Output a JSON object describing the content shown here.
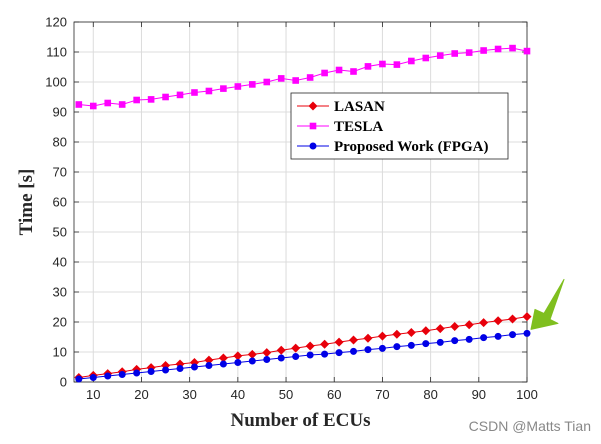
{
  "chart_data": {
    "type": "line",
    "title": "",
    "xlabel": "Number of ECUs",
    "ylabel": "Time [s]",
    "xlim": [
      6,
      100
    ],
    "ylim": [
      0,
      120
    ],
    "xticks": [
      10,
      20,
      30,
      40,
      50,
      60,
      70,
      80,
      90,
      100
    ],
    "yticks": [
      0,
      10,
      20,
      30,
      40,
      50,
      60,
      70,
      80,
      90,
      100,
      110,
      120
    ],
    "grid": true,
    "legend_position": "upper-middle-right",
    "x": [
      7,
      10,
      13,
      16,
      19,
      22,
      25,
      28,
      31,
      34,
      37,
      40,
      43,
      46,
      49,
      52,
      55,
      58,
      61,
      64,
      67,
      70,
      73,
      76,
      79,
      82,
      85,
      88,
      91,
      94,
      97,
      100
    ],
    "series": [
      {
        "name": "LASAN",
        "color": "#e8000b",
        "marker": "diamond",
        "values": [
          1.5,
          2.2,
          2.8,
          3.4,
          4.2,
          4.8,
          5.5,
          6.0,
          6.5,
          7.3,
          8.0,
          8.7,
          9.2,
          9.8,
          10.6,
          11.3,
          12.0,
          12.6,
          13.3,
          14.0,
          14.6,
          15.3,
          15.9,
          16.5,
          17.1,
          17.8,
          18.5,
          19.1,
          19.8,
          20.4,
          21.0,
          21.8
        ]
      },
      {
        "name": "TESLA",
        "color": "#ff00ff",
        "marker": "square",
        "values": [
          92.5,
          92.0,
          93.0,
          92.5,
          94.0,
          94.2,
          95.0,
          95.7,
          96.5,
          97.0,
          97.8,
          98.5,
          99.2,
          100.0,
          101.2,
          100.5,
          101.5,
          103.0,
          104.0,
          103.5,
          105.2,
          106.0,
          105.8,
          107.0,
          108.0,
          108.8,
          109.5,
          109.8,
          110.5,
          111.0,
          111.3,
          110.3
        ]
      },
      {
        "name": "Proposed Work (FPGA)",
        "color": "#0000e6",
        "marker": "circle",
        "values": [
          1.0,
          1.5,
          2.0,
          2.5,
          3.0,
          3.5,
          4.0,
          4.5,
          5.0,
          5.5,
          6.0,
          6.5,
          7.0,
          7.5,
          8.0,
          8.5,
          9.0,
          9.3,
          9.8,
          10.2,
          10.8,
          11.2,
          11.8,
          12.2,
          12.8,
          13.2,
          13.8,
          14.2,
          14.8,
          15.2,
          15.8,
          16.2
        ]
      }
    ],
    "annotation": {
      "type": "arrow",
      "color": "#7fbf1f",
      "points_to_x": 100,
      "points_to_y": 16.2
    }
  },
  "watermark": {
    "text": "CSDN @Matts Tian"
  }
}
